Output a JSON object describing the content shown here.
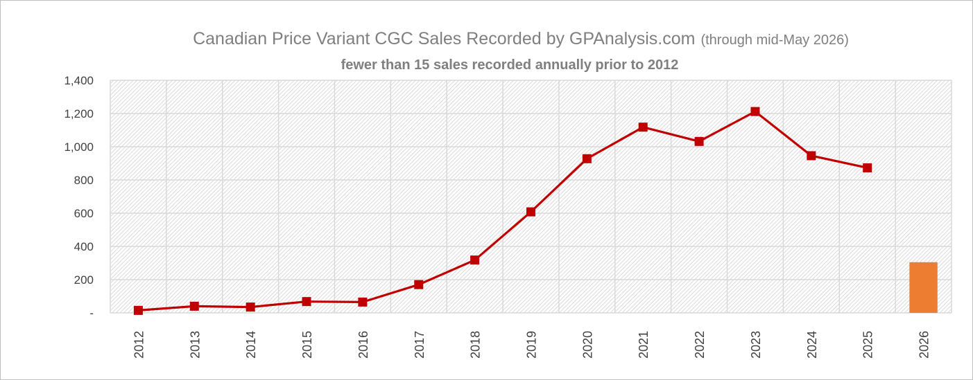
{
  "chart_data": {
    "type": "line",
    "title": "Canadian Price Variant CGC Sales Recorded by GPAnalysis.com",
    "title_suffix": "(through mid-May 2026)",
    "subtitle": "fewer than 15 sales recorded annually prior to 2012",
    "categories": [
      "2012",
      "2013",
      "2014",
      "2015",
      "2016",
      "2017",
      "2018",
      "2019",
      "2020",
      "2021",
      "2022",
      "2023",
      "2024",
      "2025",
      "2026"
    ],
    "yticks": [
      "-",
      "200",
      "400",
      "600",
      "800",
      "1,000",
      "1,200",
      "1,400"
    ],
    "ylim": [
      0,
      1400
    ],
    "grid": true,
    "series": [
      {
        "type": "line",
        "color": "#c00000",
        "marker": "square",
        "values": [
          15,
          40,
          35,
          68,
          65,
          170,
          318,
          608,
          928,
          1118,
          1032,
          1212,
          946,
          873,
          null
        ]
      },
      {
        "type": "bar",
        "color": "#ed7d31",
        "values": [
          null,
          null,
          null,
          null,
          null,
          null,
          null,
          null,
          null,
          null,
          null,
          null,
          null,
          null,
          305
        ]
      }
    ]
  }
}
